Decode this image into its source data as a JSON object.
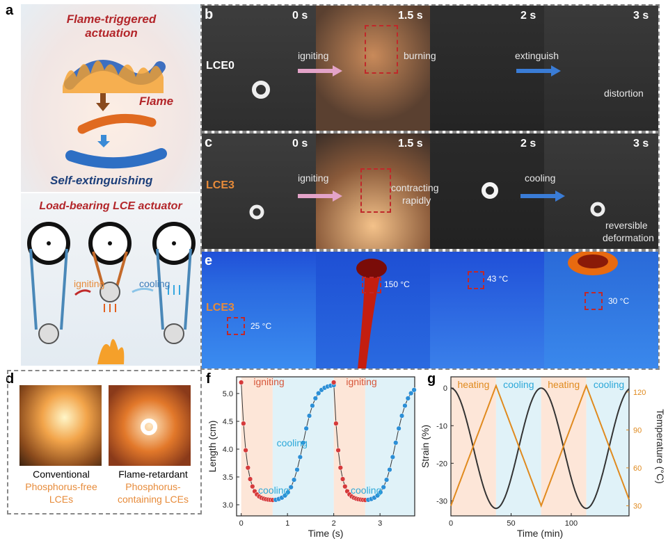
{
  "panels": {
    "a": {
      "label": "a",
      "title_top": "Flame-triggered actuation",
      "flame": "Flame",
      "self_ext": "Self-extinguishing",
      "title_bottom": "Load-bearing LCE actuator",
      "igniting": "igniting",
      "cooling": "cooling"
    },
    "b": {
      "label": "b",
      "sample": "LCE0",
      "times": [
        "0 s",
        "1.5 s",
        "2 s",
        "3 s"
      ],
      "igniting": "igniting",
      "burning": "burning",
      "extinguish": "extinguish",
      "distortion": "distortion"
    },
    "c": {
      "label": "c",
      "sample": "LCE3",
      "times": [
        "0 s",
        "1.5 s",
        "2 s",
        "3 s"
      ],
      "igniting": "igniting",
      "contracting": "contracting",
      "rapidly": "rapidly",
      "cooling": "cooling",
      "reversible": "reversible",
      "deformation": "deformation"
    },
    "e": {
      "label": "e",
      "sample": "LCE3",
      "temps": [
        "25 °C",
        "150 °C",
        "43 °C",
        "30 °C"
      ]
    },
    "d": {
      "label": "d",
      "left_line1": "Conventional",
      "left_line2": "Phosphorus-free",
      "left_line3": "LCEs",
      "right_line1": "Flame-retardant",
      "right_line2": "Phosphorus-",
      "right_line3": "containing LCEs"
    },
    "f": {
      "label": "f"
    },
    "g": {
      "label": "g"
    }
  },
  "chart_data": [
    {
      "type": "scatter",
      "panel": "f",
      "xlabel": "Time (s)",
      "ylabel": "Length (cm)",
      "xlim": [
        -0.1,
        3.75
      ],
      "ylim": [
        2.8,
        5.3
      ],
      "xticks": [
        "0",
        "1",
        "2",
        "3"
      ],
      "yticks": [
        "3.0",
        "3.5",
        "4.0",
        "4.5",
        "5.0"
      ],
      "annotations": [
        "igniting",
        "cooling",
        "igniting",
        "cooling",
        "cooling",
        "cooling"
      ],
      "series": [
        {
          "name": "igniting",
          "color": "#d63a3a",
          "cycle_starts": [
            0,
            2.0
          ],
          "duration": 0.68,
          "start_value": 5.2,
          "end_value": 3.08
        },
        {
          "name": "cooling",
          "color": "#2b8fd6",
          "cycle_starts": [
            0.68,
            2.68
          ],
          "duration": 1.32,
          "start_value": 3.08,
          "end_value": 5.15
        }
      ]
    },
    {
      "type": "line",
      "panel": "g",
      "xlabel": "Time (min)",
      "ylabel": "Strain (%)",
      "y2label": "Temperature (°C)",
      "xlim": [
        0,
        148
      ],
      "ylim": [
        -34,
        3
      ],
      "y2lim": [
        22,
        132
      ],
      "xticks": [
        "0",
        "50",
        "100"
      ],
      "yticks": [
        "0",
        "-10",
        "-20",
        "-30"
      ],
      "y2ticks": [
        "30",
        "60",
        "90",
        "120"
      ],
      "annotations": [
        "heating",
        "cooling",
        "heating",
        "cooling"
      ],
      "series": [
        {
          "name": "Strain",
          "color": "#333333",
          "period": 75,
          "min": -32,
          "max": 0
        },
        {
          "name": "Temperature",
          "color": "#e08a1e",
          "period": 75,
          "min": 30,
          "max": 125
        }
      ]
    }
  ]
}
